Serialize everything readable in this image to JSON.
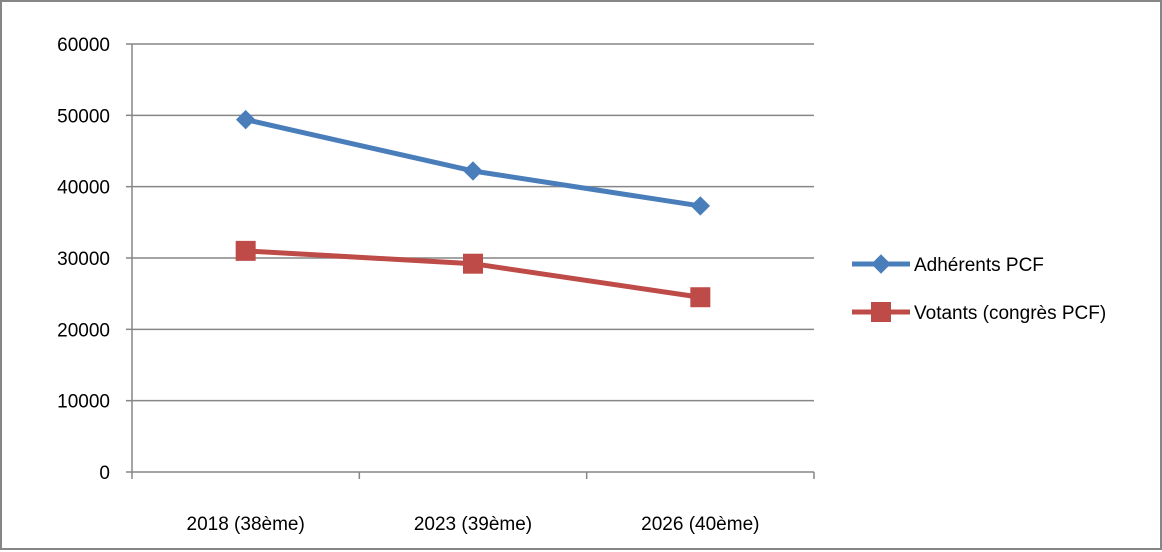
{
  "chart_data": {
    "type": "line",
    "title": "",
    "xlabel": "",
    "ylabel": "",
    "categories": [
      "2018 (38ème)",
      "2023 (39ème)",
      "2026 (40ème)"
    ],
    "ylim": [
      0,
      60000
    ],
    "yticks": [
      0,
      10000,
      20000,
      30000,
      40000,
      50000,
      60000
    ],
    "grid": "horizontal",
    "legend_position": "right",
    "series": [
      {
        "name": "Adhérents PCF",
        "values": [
          49400,
          42200,
          37300
        ],
        "color": "#4a7ebb",
        "marker": "diamond"
      },
      {
        "name": "Votants (congrès PCF)",
        "values": [
          31000,
          29200,
          24500
        ],
        "color": "#be4b48",
        "marker": "square"
      }
    ]
  }
}
